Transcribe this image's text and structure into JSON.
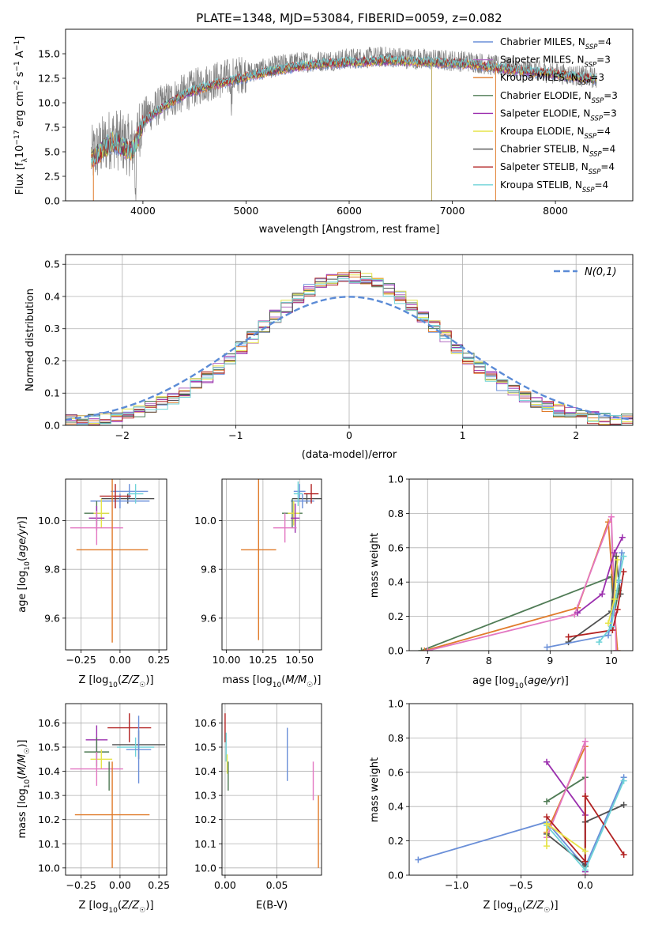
{
  "chart_data": [
    {
      "type": "line",
      "title": "PLATE=1348, MJD=53084, FIBERID=0059, z=0.082",
      "xlabel": "wavelength [Angstrom, rest frame]",
      "ylabel": "Flux [f_λ10^-17 erg cm^-2 s^-1 A^-1]",
      "xlim": [
        3250,
        8750
      ],
      "ylim": [
        0,
        17.5
      ],
      "xticks": [
        4000,
        5000,
        6000,
        7000,
        8000
      ],
      "yticks": [
        0.0,
        2.5,
        5.0,
        7.5,
        10.0,
        12.5,
        15.0
      ],
      "grid": false,
      "legend_position": "right",
      "x": [
        3500,
        3700,
        3900,
        4000,
        4200,
        4400,
        4600,
        4800,
        5000,
        5200,
        5400,
        5600,
        5800,
        6000,
        6200,
        6400,
        6600,
        6800,
        7000,
        7200,
        7400,
        7600,
        7800,
        8000,
        8200,
        8400
      ],
      "series": [
        {
          "name": "Chabrier MILES, N_SSP=4",
          "color": "#6a8fd8"
        },
        {
          "name": "Salpeter MILES, N_SSP=3",
          "color": "#b06ac0"
        },
        {
          "name": "Kroupa MILES, N_SSP=3",
          "color": "#e07b2a"
        },
        {
          "name": "Chabrier ELODIE, N_SSP=3",
          "color": "#4f7b55"
        },
        {
          "name": "Salpeter ELODIE, N_SSP=3",
          "color": "#9b2fae"
        },
        {
          "name": "Kroupa ELODIE, N_SSP=4",
          "color": "#e6e44a"
        },
        {
          "name": "Chabrier STELIB, N_SSP=4",
          "color": "#505050"
        },
        {
          "name": "Salpeter STELIB, N_SSP=4",
          "color": "#b22222"
        },
        {
          "name": "Kroupa STELIB, N_SSP=4",
          "color": "#6fd3d8"
        }
      ],
      "observed": {
        "color": "#808080",
        "values": [
          4.5,
          6.5,
          5.5,
          8.5,
          10.0,
          11.0,
          12.0,
          12.5,
          13.0,
          13.5,
          14.0,
          14.2,
          14.3,
          14.5,
          14.6,
          14.7,
          14.5,
          14.4,
          14.3,
          14.2,
          13.8,
          13.5,
          13.3,
          13.0,
          12.8,
          12.5
        ]
      },
      "model": {
        "values": [
          4.2,
          6.0,
          5.0,
          8.0,
          9.6,
          10.8,
          11.6,
          12.1,
          12.6,
          13.1,
          13.5,
          13.8,
          14.0,
          14.1,
          14.2,
          14.3,
          14.2,
          14.1,
          14.0,
          13.9,
          13.6,
          13.3,
          13.1,
          12.9,
          12.6,
          12.4
        ]
      }
    },
    {
      "type": "line",
      "title": "",
      "xlabel": "(data-model)/error",
      "ylabel": "Normed distribution",
      "xlim": [
        -2.5,
        2.5
      ],
      "ylim": [
        0,
        0.53
      ],
      "xticks": [
        -2,
        -1,
        0,
        1,
        2
      ],
      "yticks": [
        0.0,
        0.1,
        0.2,
        0.3,
        0.4,
        0.5
      ],
      "grid": true,
      "legend_position": "top-right",
      "reference": {
        "name": "N(0,1)",
        "color": "#5b8bd6"
      },
      "bin_width": 0.1
    },
    {
      "type": "scatter",
      "xlabel": "Z [log10(Z/Z☉)]",
      "ylabel": "age  [log10(age/yr)]",
      "xlim": [
        -0.35,
        0.3
      ],
      "ylim": [
        9.47,
        10.17
      ],
      "xticks": [
        -0.25,
        0.0,
        0.25
      ],
      "yticks": [
        9.6,
        9.8,
        10.0
      ],
      "grid": true,
      "points": [
        {
          "x": 0.06,
          "y": 10.12,
          "xerr": 0.12,
          "yerr": 0.03,
          "color": "#6a8fd8"
        },
        {
          "x": 0.05,
          "y": 10.09,
          "xerr": 0.17,
          "yerr": 0.02,
          "color": "#505050"
        },
        {
          "x": 0.0,
          "y": 10.08,
          "xerr": 0.19,
          "yerr": 0.03,
          "color": "#6a8fd8"
        },
        {
          "x": -0.03,
          "y": 10.1,
          "xerr": 0.1,
          "yerr": 0.05,
          "color": "#b22222"
        },
        {
          "x": 0.1,
          "y": 10.11,
          "xerr": 0.05,
          "yerr": 0.04,
          "color": "#6fd3d8"
        },
        {
          "x": -0.15,
          "y": 10.03,
          "xerr": 0.08,
          "yerr": 0.05,
          "color": "#4f7b55"
        },
        {
          "x": -0.12,
          "y": 10.03,
          "xerr": 0.05,
          "yerr": 0.06,
          "color": "#e6e44a"
        },
        {
          "x": -0.15,
          "y": 10.01,
          "xerr": 0.05,
          "yerr": 0.05,
          "color": "#9b2fae"
        },
        {
          "x": -0.15,
          "y": 9.97,
          "xerr": 0.17,
          "yerr": 0.07,
          "color": "#e377c2"
        },
        {
          "x": -0.05,
          "y": 9.88,
          "xerr": 0.23,
          "yerr": 0.38,
          "color": "#e07b2a"
        }
      ]
    },
    {
      "type": "scatter",
      "xlabel": "mass [log10(M/M☉)]",
      "ylabel": "",
      "xlim": [
        9.97,
        10.65
      ],
      "ylim": [
        9.47,
        10.17
      ],
      "xticks": [
        10.0,
        10.25,
        10.5
      ],
      "yticks": [
        9.6,
        9.8,
        10.0
      ],
      "grid": true,
      "points": [
        {
          "x": 10.5,
          "y": 10.12,
          "xerr": 0.04,
          "yerr": 0.03,
          "color": "#6a8fd8"
        },
        {
          "x": 10.55,
          "y": 10.09,
          "xerr": 0.1,
          "yerr": 0.02,
          "color": "#505050"
        },
        {
          "x": 10.52,
          "y": 10.08,
          "xerr": 0.08,
          "yerr": 0.03,
          "color": "#6a8fd8"
        },
        {
          "x": 10.58,
          "y": 10.11,
          "xerr": 0.05,
          "yerr": 0.04,
          "color": "#b22222"
        },
        {
          "x": 10.49,
          "y": 10.11,
          "xerr": 0.03,
          "yerr": 0.05,
          "color": "#6fd3d8"
        },
        {
          "x": 10.45,
          "y": 10.03,
          "xerr": 0.07,
          "yerr": 0.06,
          "color": "#4f7b55"
        },
        {
          "x": 10.46,
          "y": 10.03,
          "xerr": 0.04,
          "yerr": 0.05,
          "color": "#e6e44a"
        },
        {
          "x": 10.47,
          "y": 10.01,
          "xerr": 0.03,
          "yerr": 0.06,
          "color": "#9b2fae"
        },
        {
          "x": 10.4,
          "y": 9.97,
          "xerr": 0.08,
          "yerr": 0.06,
          "color": "#e377c2"
        },
        {
          "x": 10.22,
          "y": 9.88,
          "xerr": 0.12,
          "yerr": 0.37,
          "color": "#e07b2a"
        }
      ]
    },
    {
      "type": "line",
      "xlabel": "age  [log10(age/yr)]",
      "ylabel": "mass weight",
      "xlim": [
        6.7,
        10.35
      ],
      "ylim": [
        0.0,
        1.0
      ],
      "xticks": [
        7,
        8,
        9,
        10
      ],
      "yticks": [
        0.0,
        0.2,
        0.4,
        0.6,
        0.8,
        1.0
      ],
      "grid": true,
      "series": [
        {
          "color": "#4f7b55",
          "x": [
            6.9,
            10.0,
            10.05,
            10.12
          ],
          "y": [
            0.0,
            0.43,
            0.22,
            0.35
          ]
        },
        {
          "color": "#e07b2a",
          "x": [
            6.95,
            9.45,
            9.95,
            10.1
          ],
          "y": [
            0.0,
            0.25,
            0.75,
            0.0
          ]
        },
        {
          "color": "#e377c2",
          "x": [
            7.0,
            9.4,
            10.0,
            10.08
          ],
          "y": [
            0.0,
            0.21,
            0.78,
            0.0
          ]
        },
        {
          "color": "#9b2fae",
          "x": [
            9.45,
            9.85,
            10.05,
            10.18
          ],
          "y": [
            0.22,
            0.33,
            0.57,
            0.66
          ]
        },
        {
          "color": "#505050",
          "x": [
            9.3,
            10.0,
            10.08,
            10.12,
            10.15
          ],
          "y": [
            0.05,
            0.23,
            0.55,
            0.41,
            0.33
          ]
        },
        {
          "color": "#b22222",
          "x": [
            9.3,
            10.02,
            10.1,
            10.2
          ],
          "y": [
            0.08,
            0.12,
            0.24,
            0.46
          ]
        },
        {
          "color": "#6a8fd8",
          "x": [
            8.95,
            9.95,
            10.12,
            10.17
          ],
          "y": [
            0.02,
            0.09,
            0.4,
            0.57
          ]
        },
        {
          "color": "#6fd3d8",
          "x": [
            9.8,
            10.0,
            10.12,
            10.2
          ],
          "y": [
            0.05,
            0.14,
            0.41,
            0.55
          ]
        },
        {
          "color": "#e6e44a",
          "x": [
            9.95,
            10.05,
            10.1
          ],
          "y": [
            0.16,
            0.3,
            0.53
          ]
        }
      ]
    },
    {
      "type": "scatter",
      "xlabel": "Z [log10(Z/Z☉)]",
      "ylabel": "mass [log10(M/M☉)]",
      "xlim": [
        -0.35,
        0.3
      ],
      "ylim": [
        9.97,
        10.68
      ],
      "xticks": [
        -0.25,
        0.0,
        0.25
      ],
      "yticks": [
        10.0,
        10.1,
        10.2,
        10.3,
        10.4,
        10.5,
        10.6
      ],
      "grid": true,
      "points": [
        {
          "x": 0.06,
          "y": 10.58,
          "xerr": 0.14,
          "yerr": 0.06,
          "color": "#b22222"
        },
        {
          "x": 0.12,
          "y": 10.51,
          "xerr": 0.17,
          "yerr": 0.06,
          "color": "#505050"
        },
        {
          "x": 0.1,
          "y": 10.5,
          "xerr": 0.12,
          "yerr": 0.04,
          "color": "#6fd3d8"
        },
        {
          "x": 0.12,
          "y": 10.49,
          "xerr": 0.08,
          "yerr": 0.14,
          "color": "#6a8fd8"
        },
        {
          "x": -0.15,
          "y": 10.53,
          "xerr": 0.07,
          "yerr": 0.06,
          "color": "#9b2fae"
        },
        {
          "x": -0.15,
          "y": 10.48,
          "xerr": 0.08,
          "yerr": 0.06,
          "color": "#4f7b55"
        },
        {
          "x": -0.12,
          "y": 10.45,
          "xerr": 0.07,
          "yerr": 0.04,
          "color": "#e6e44a"
        },
        {
          "x": -0.15,
          "y": 10.41,
          "xerr": 0.17,
          "yerr": 0.07,
          "color": "#e377c2"
        },
        {
          "x": -0.05,
          "y": 10.22,
          "xerr": 0.24,
          "yerr": 0.22,
          "color": "#e07b2a"
        },
        {
          "x": -0.07,
          "y": 10.38,
          "xerr": 0.0,
          "yerr": 0.06,
          "color": "#4f7b55"
        }
      ]
    },
    {
      "type": "scatter",
      "xlabel": "E(B-V)",
      "ylabel": "",
      "xlim": [
        -0.003,
        0.093
      ],
      "ylim": [
        9.97,
        10.68
      ],
      "xticks": [
        0.0,
        0.05
      ],
      "yticks": [
        10.0,
        10.1,
        10.2,
        10.3,
        10.4,
        10.5,
        10.6
      ],
      "grid": true,
      "points": [
        {
          "x": 0.0,
          "y": 10.58,
          "yerr": 0.06,
          "color": "#b22222"
        },
        {
          "x": 0.001,
          "y": 10.5,
          "yerr": 0.06,
          "color": "#6fd3d8"
        },
        {
          "x": 0.002,
          "y": 10.43,
          "yerr": 0.04,
          "color": "#e6e44a"
        },
        {
          "x": 0.003,
          "y": 10.38,
          "yerr": 0.06,
          "color": "#4f7b55"
        },
        {
          "x": 0.06,
          "y": 10.47,
          "yerr": 0.11,
          "color": "#6a8fd8"
        },
        {
          "x": 0.085,
          "y": 10.36,
          "yerr": 0.08,
          "color": "#e377c2"
        },
        {
          "x": 0.09,
          "y": 10.15,
          "yerr": 0.15,
          "color": "#e07b2a"
        }
      ]
    },
    {
      "type": "line",
      "xlabel": "Z [log10(Z/Z☉)]",
      "ylabel": "mass weight",
      "xlim": [
        -1.37,
        0.37
      ],
      "ylim": [
        0.0,
        1.0
      ],
      "xticks": [
        -1.0,
        -0.5,
        0.0
      ],
      "yticks": [
        0.0,
        0.2,
        0.4,
        0.6,
        0.8,
        1.0
      ],
      "grid": true,
      "series": [
        {
          "color": "#6a8fd8",
          "x": [
            -1.3,
            -0.3,
            0.0,
            0.3
          ],
          "y": [
            0.09,
            0.31,
            0.05,
            0.57
          ]
        },
        {
          "color": "#9b2fae",
          "x": [
            -0.3,
            0.0,
            0.0
          ],
          "y": [
            0.66,
            0.35,
            0.02
          ]
        },
        {
          "color": "#4f7b55",
          "x": [
            -0.3,
            0.0,
            0.0
          ],
          "y": [
            0.43,
            0.57,
            0.05
          ]
        },
        {
          "color": "#e07b2a",
          "x": [
            -0.3,
            0.0,
            0.0
          ],
          "y": [
            0.25,
            0.75,
            0.0
          ]
        },
        {
          "color": "#e377c2",
          "x": [
            -0.3,
            0.0,
            0.0
          ],
          "y": [
            0.22,
            0.78,
            0.0
          ]
        },
        {
          "color": "#505050",
          "x": [
            -0.3,
            0.0,
            0.0,
            0.3
          ],
          "y": [
            0.24,
            0.06,
            0.31,
            0.41
          ]
        },
        {
          "color": "#b22222",
          "x": [
            -0.3,
            0.0,
            0.0,
            0.3
          ],
          "y": [
            0.34,
            0.08,
            0.46,
            0.12
          ]
        },
        {
          "color": "#6fd3d8",
          "x": [
            -0.3,
            0.0,
            0.3
          ],
          "y": [
            0.29,
            0.03,
            0.55
          ]
        },
        {
          "color": "#e6e44a",
          "x": [
            -0.3,
            -0.3,
            0.0
          ],
          "y": [
            0.17,
            0.3,
            0.14
          ]
        }
      ]
    }
  ]
}
